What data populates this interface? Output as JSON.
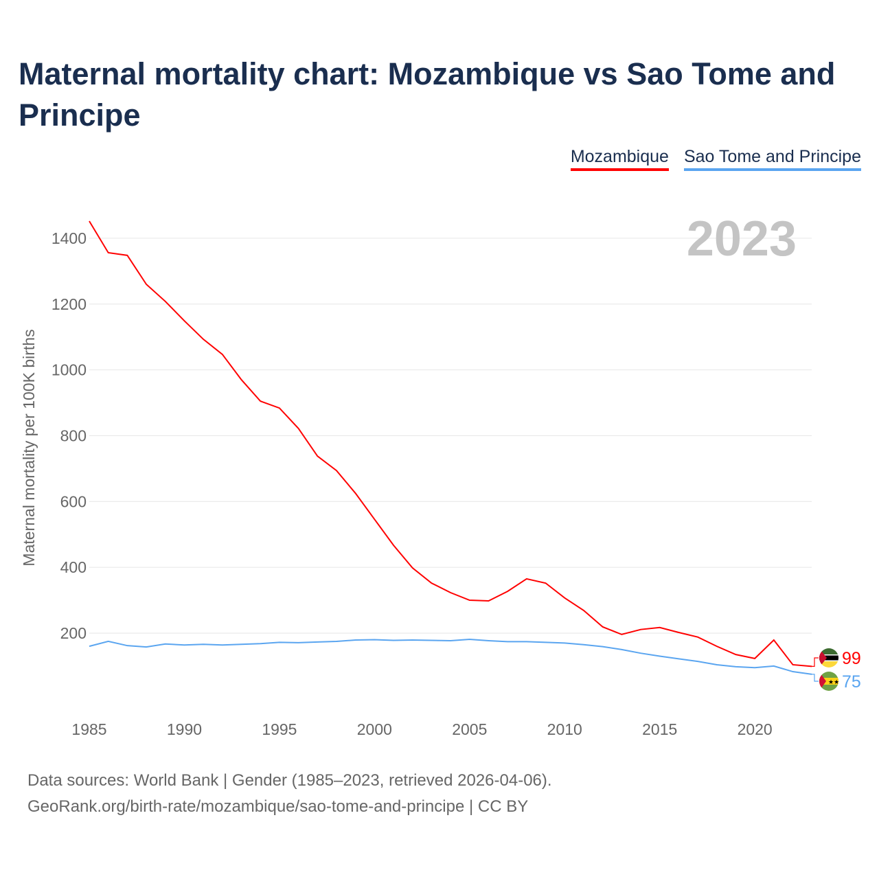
{
  "title": "Maternal mortality chart: Mozambique vs Sao Tome and Principe",
  "year_label": "2023",
  "footer": {
    "line1": "Data sources: World Bank | Gender (1985–2023, retrieved 2026-04-06).",
    "line2": "GeoRank.org/birth-rate/mozambique/sao-tome-and-principe | CC BY"
  },
  "chart_data": {
    "type": "line",
    "title": "Maternal mortality chart: Mozambique vs Sao Tome and Principe",
    "xlabel": "",
    "ylabel": "Maternal mortality per 100K births",
    "xlim": [
      1985,
      2023
    ],
    "ylim": [
      0,
      1450
    ],
    "x_ticks": [
      1985,
      1990,
      1995,
      2000,
      2005,
      2010,
      2015,
      2020
    ],
    "y_ticks": [
      200,
      400,
      600,
      800,
      1000,
      1200,
      1400
    ],
    "legend": "top-right",
    "grid": true,
    "x": [
      1985,
      1986,
      1987,
      1988,
      1989,
      1990,
      1991,
      1992,
      1993,
      1994,
      1995,
      1996,
      1997,
      1998,
      1999,
      2000,
      2001,
      2002,
      2003,
      2004,
      2005,
      2006,
      2007,
      2008,
      2009,
      2010,
      2011,
      2012,
      2013,
      2014,
      2015,
      2016,
      2017,
      2018,
      2019,
      2020,
      2021,
      2022,
      2023
    ],
    "series": [
      {
        "name": "Mozambique",
        "color": "#ff0000",
        "end_label": "99",
        "values": [
          1452,
          1356,
          1348,
          1260,
          1208,
          1149,
          1093,
          1047,
          970,
          905,
          884,
          822,
          738,
          694,
          625,
          546,
          467,
          398,
          352,
          323,
          300,
          298,
          327,
          365,
          352,
          307,
          269,
          219,
          196,
          211,
          217,
          202,
          188,
          160,
          135,
          123,
          179,
          104,
          99
        ]
      },
      {
        "name": "Sao Tome and Principe",
        "color": "#5aa5f0",
        "end_label": "75",
        "values": [
          160,
          175,
          162,
          158,
          167,
          164,
          166,
          164,
          166,
          168,
          172,
          171,
          173,
          175,
          179,
          180,
          178,
          179,
          178,
          177,
          181,
          177,
          174,
          174,
          172,
          170,
          165,
          159,
          150,
          139,
          130,
          122,
          114,
          104,
          98,
          95,
          100,
          83,
          75
        ]
      }
    ]
  }
}
